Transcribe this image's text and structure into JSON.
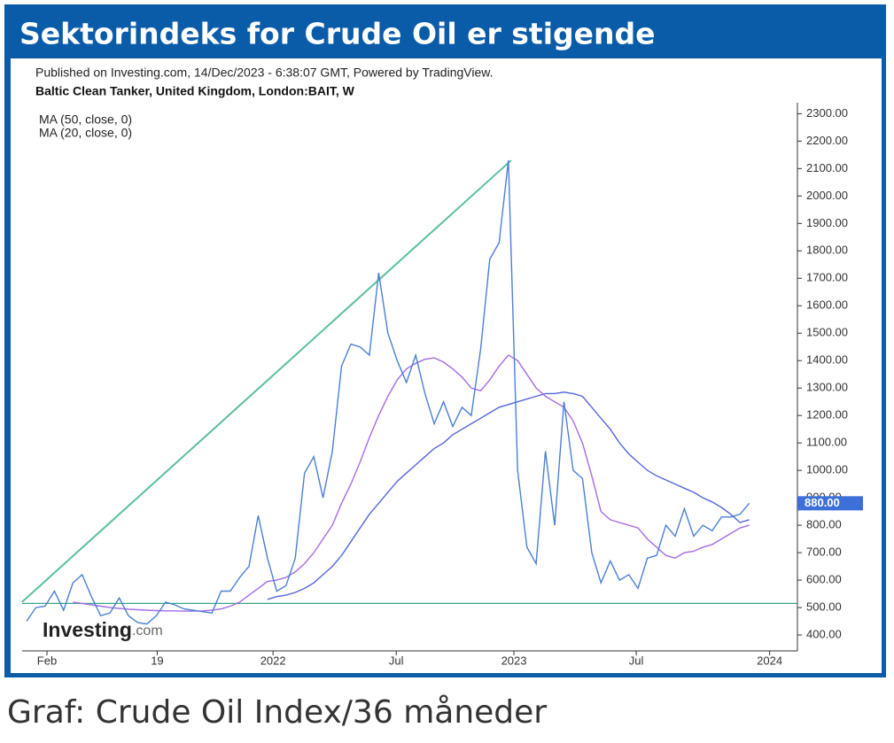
{
  "title": "Sektorindeks for Crude Oil er stigende",
  "caption": "Graf: Crude Oil Index/36 måneder",
  "chart_data": {
    "type": "line",
    "subtitle": "Published on Investing.com, 14/Dec/2023 - 6:38:07 GMT, Powered by TradingView.",
    "logo": "Investing",
    "logo_suffix": ".com",
    "xlim": [
      0,
      83.2
    ],
    "ylim": [
      342,
      2340
    ],
    "xticks": [
      {
        "value": 2.2,
        "label": "Feb"
      },
      {
        "value": 14.1,
        "label": "19"
      },
      {
        "value": 26.6,
        "label": "2022"
      },
      {
        "value": 39.9,
        "label": "Jul"
      },
      {
        "value": 52.6,
        "label": "2023"
      },
      {
        "value": 65.8,
        "label": "Jul"
      },
      {
        "value": 80.2,
        "label": "2024"
      }
    ],
    "yticks": [
      {
        "value": 400,
        "label": "400.00"
      },
      {
        "value": 500,
        "label": "500.00"
      },
      {
        "value": 600,
        "label": "600.00"
      },
      {
        "value": 700,
        "label": "700.00"
      },
      {
        "value": 800,
        "label": "800.00"
      },
      {
        "value": 900,
        "label": "900.00"
      },
      {
        "value": 1000,
        "label": "1000.00"
      },
      {
        "value": 1100,
        "label": "1100.00"
      },
      {
        "value": 1200,
        "label": "1200.00"
      },
      {
        "value": 1300,
        "label": "1300.00"
      },
      {
        "value": 1400,
        "label": "1400.00"
      },
      {
        "value": 1500,
        "label": "1500.00"
      },
      {
        "value": 1600,
        "label": "1600.00"
      },
      {
        "value": 1700,
        "label": "1700.00"
      },
      {
        "value": 1800,
        "label": "1800.00"
      },
      {
        "value": 1900,
        "label": "1900.00"
      },
      {
        "value": 2000,
        "label": "2000.00"
      },
      {
        "value": 2100,
        "label": "2100.00"
      },
      {
        "value": 2200,
        "label": "2200.00"
      },
      {
        "value": 2300,
        "label": "2300.00"
      }
    ],
    "series": [
      {
        "name": "Baltic Clean Tanker, United Kingdom, London:BAIT, W",
        "color": "#4a7fd6",
        "values": [
          450,
          500,
          505,
          560,
          490,
          590,
          620,
          540,
          470,
          480,
          535,
          470,
          445,
          440,
          470,
          520,
          510,
          495,
          490,
          485,
          480,
          560,
          560,
          610,
          650,
          835,
          680,
          560,
          580,
          680,
          990,
          1050,
          900,
          1070,
          1380,
          1460,
          1450,
          1420,
          1720,
          1500,
          1400,
          1320,
          1420,
          1280,
          1170,
          1250,
          1160,
          1230,
          1200,
          1440,
          1770,
          1830,
          2130,
          1000,
          720,
          660,
          1070,
          800,
          1250,
          1000,
          970,
          700,
          590,
          670,
          600,
          620,
          570,
          680,
          690,
          800,
          760,
          860,
          760,
          800,
          780,
          830,
          830,
          840,
          880
        ]
      },
      {
        "name": "MA (50, close, 0)",
        "color": "#5566dd",
        "values": [
          null,
          null,
          null,
          null,
          null,
          null,
          null,
          null,
          null,
          null,
          null,
          null,
          null,
          null,
          null,
          null,
          null,
          null,
          null,
          null,
          null,
          null,
          null,
          null,
          null,
          null,
          530,
          540,
          545,
          555,
          570,
          590,
          620,
          650,
          690,
          740,
          790,
          840,
          880,
          920,
          960,
          990,
          1020,
          1050,
          1080,
          1100,
          1130,
          1150,
          1170,
          1190,
          1210,
          1230,
          1240,
          1250,
          1260,
          1270,
          1280,
          1280,
          1285,
          1280,
          1270,
          1230,
          1190,
          1150,
          1100,
          1060,
          1030,
          1000,
          980,
          965,
          950,
          935,
          920,
          900,
          885,
          865,
          840,
          810,
          820
        ]
      },
      {
        "name": "MA (20, close, 0)",
        "color": "#a46be8",
        "values": [
          null,
          null,
          null,
          null,
          null,
          520,
          515,
          510,
          505,
          500,
          497,
          494,
          492,
          490,
          489,
          488,
          488,
          487,
          487,
          488,
          490,
          495,
          505,
          520,
          545,
          570,
          595,
          600,
          610,
          630,
          660,
          700,
          750,
          800,
          880,
          950,
          1030,
          1120,
          1200,
          1270,
          1330,
          1370,
          1390,
          1405,
          1410,
          1395,
          1370,
          1340,
          1300,
          1290,
          1330,
          1380,
          1420,
          1400,
          1350,
          1300,
          1270,
          1250,
          1230,
          1180,
          1100,
          980,
          850,
          820,
          810,
          800,
          790,
          750,
          720,
          690,
          680,
          700,
          705,
          720,
          730,
          750,
          770,
          790,
          800
        ]
      }
    ],
    "trend_line": {
      "color": "#5cbf9b",
      "x": [
        -0.5,
        52.3
      ],
      "values": [
        520,
        2130
      ]
    },
    "hline": {
      "color": "#3aa58a",
      "value": 515
    },
    "price_label": {
      "value": 880,
      "label": "880.00",
      "color": "#3d6fd8"
    }
  }
}
